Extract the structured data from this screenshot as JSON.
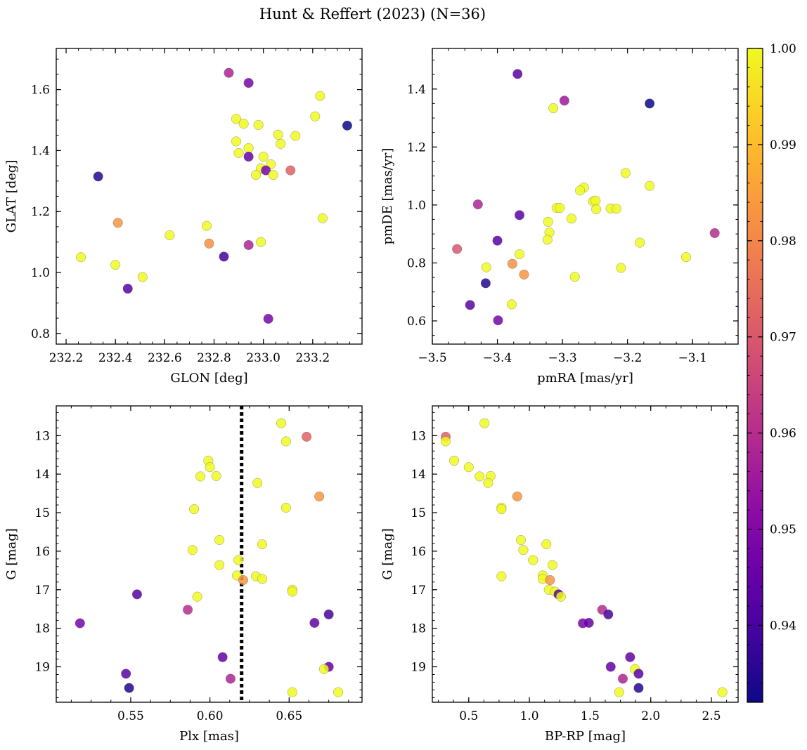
{
  "figure": {
    "title": "Hunt & Reffert (2023) (N=36)"
  },
  "colorbar": {
    "colormap": "plasma",
    "vmin": 0.932,
    "vmax": 1.0,
    "tick_values": [
      0.94,
      0.95,
      0.96,
      0.97,
      0.98,
      0.99,
      1.0
    ],
    "tick_labels": [
      "0.94",
      "0.95",
      "0.96",
      "0.97",
      "0.98",
      "0.99",
      "1.00"
    ]
  },
  "chart_data": [
    {
      "type": "scatter",
      "id": "glon-glat",
      "xlabel": "GLON [deg]",
      "ylabel": "GLAT [deg]",
      "xlim": [
        232.16,
        233.4
      ],
      "ylim": [
        0.765,
        1.735
      ],
      "xticks": [
        232.2,
        232.4,
        232.6,
        232.8,
        233.0,
        233.2
      ],
      "xtick_labels": [
        "232.2",
        "232.4",
        "232.6",
        "232.8",
        "233.0",
        "233.2"
      ],
      "yticks": [
        0.8,
        1.0,
        1.2,
        1.4,
        1.6
      ],
      "ytick_labels": [
        "0.8",
        "1.0",
        "1.2",
        "1.4",
        "1.6"
      ],
      "yinvert": false,
      "points": [
        {
          "x": 232.86,
          "y": 1.655,
          "c": 0.958
        },
        {
          "x": 232.94,
          "y": 1.622,
          "c": 0.948
        },
        {
          "x": 233.23,
          "y": 1.579,
          "c": 1.0
        },
        {
          "x": 233.21,
          "y": 1.512,
          "c": 1.0
        },
        {
          "x": 233.34,
          "y": 1.482,
          "c": 0.932
        },
        {
          "x": 232.89,
          "y": 1.504,
          "c": 1.0
        },
        {
          "x": 232.92,
          "y": 1.488,
          "c": 1.0
        },
        {
          "x": 232.98,
          "y": 1.484,
          "c": 1.0
        },
        {
          "x": 233.06,
          "y": 1.452,
          "c": 1.0
        },
        {
          "x": 233.13,
          "y": 1.448,
          "c": 1.0
        },
        {
          "x": 232.89,
          "y": 1.43,
          "c": 1.0
        },
        {
          "x": 233.07,
          "y": 1.422,
          "c": 1.0
        },
        {
          "x": 232.94,
          "y": 1.408,
          "c": 1.0
        },
        {
          "x": 232.9,
          "y": 1.392,
          "c": 1.0
        },
        {
          "x": 232.94,
          "y": 1.38,
          "c": 0.945
        },
        {
          "x": 233.0,
          "y": 1.38,
          "c": 1.0
        },
        {
          "x": 233.03,
          "y": 1.355,
          "c": 1.0
        },
        {
          "x": 232.99,
          "y": 1.342,
          "c": 1.0
        },
        {
          "x": 233.01,
          "y": 1.335,
          "c": 0.948
        },
        {
          "x": 233.11,
          "y": 1.335,
          "c": 0.972
        },
        {
          "x": 232.97,
          "y": 1.32,
          "c": 1.0
        },
        {
          "x": 233.04,
          "y": 1.32,
          "c": 1.0
        },
        {
          "x": 232.33,
          "y": 1.315,
          "c": 0.935
        },
        {
          "x": 233.24,
          "y": 1.178,
          "c": 1.0
        },
        {
          "x": 232.41,
          "y": 1.163,
          "c": 0.983
        },
        {
          "x": 232.77,
          "y": 1.153,
          "c": 1.0
        },
        {
          "x": 232.62,
          "y": 1.122,
          "c": 1.0
        },
        {
          "x": 232.99,
          "y": 1.1,
          "c": 1.0
        },
        {
          "x": 232.78,
          "y": 1.095,
          "c": 0.982
        },
        {
          "x": 232.94,
          "y": 1.09,
          "c": 0.958
        },
        {
          "x": 232.26,
          "y": 1.05,
          "c": 1.0
        },
        {
          "x": 232.84,
          "y": 1.052,
          "c": 0.94
        },
        {
          "x": 232.4,
          "y": 1.025,
          "c": 1.0
        },
        {
          "x": 232.51,
          "y": 0.985,
          "c": 1.0
        },
        {
          "x": 232.45,
          "y": 0.947,
          "c": 0.943
        },
        {
          "x": 233.02,
          "y": 0.848,
          "c": 0.948
        }
      ]
    },
    {
      "type": "scatter",
      "id": "pmra-pmde",
      "xlabel": "pmRA [mas/yr]",
      "ylabel": "pmDE [mas/yr]",
      "xlim": [
        -3.5,
        -3.03
      ],
      "ylim": [
        0.52,
        1.54
      ],
      "xticks": [
        -3.5,
        -3.4,
        -3.3,
        -3.2,
        -3.1
      ],
      "xtick_labels": [
        "−3.5",
        "−3.4",
        "−3.3",
        "−3.2",
        "−3.1"
      ],
      "yticks": [
        0.6,
        0.8,
        1.0,
        1.2,
        1.4
      ],
      "ytick_labels": [
        "0.6",
        "0.8",
        "1.0",
        "1.2",
        "1.4"
      ],
      "yinvert": false,
      "points": [
        {
          "x": -3.369,
          "y": 1.452,
          "c": 0.943
        },
        {
          "x": -3.297,
          "y": 1.36,
          "c": 0.955
        },
        {
          "x": -3.314,
          "y": 1.334,
          "c": 1.0
        },
        {
          "x": -3.166,
          "y": 1.35,
          "c": 0.932
        },
        {
          "x": -3.203,
          "y": 1.11,
          "c": 1.0
        },
        {
          "x": -3.166,
          "y": 1.066,
          "c": 1.0
        },
        {
          "x": -3.267,
          "y": 1.06,
          "c": 1.0
        },
        {
          "x": -3.273,
          "y": 1.05,
          "c": 1.0
        },
        {
          "x": -3.43,
          "y": 1.002,
          "c": 0.958
        },
        {
          "x": -3.253,
          "y": 1.012,
          "c": 1.0
        },
        {
          "x": -3.249,
          "y": 1.015,
          "c": 1.0
        },
        {
          "x": -3.309,
          "y": 0.99,
          "c": 1.0
        },
        {
          "x": -3.304,
          "y": 0.99,
          "c": 1.0
        },
        {
          "x": -3.226,
          "y": 0.988,
          "c": 1.0
        },
        {
          "x": -3.217,
          "y": 0.987,
          "c": 1.0
        },
        {
          "x": -3.248,
          "y": 0.985,
          "c": 1.0
        },
        {
          "x": -3.366,
          "y": 0.965,
          "c": 0.943
        },
        {
          "x": -3.286,
          "y": 0.953,
          "c": 1.0
        },
        {
          "x": -3.322,
          "y": 0.942,
          "c": 1.0
        },
        {
          "x": -3.32,
          "y": 0.905,
          "c": 1.0
        },
        {
          "x": -3.066,
          "y": 0.903,
          "c": 0.96
        },
        {
          "x": -3.323,
          "y": 0.88,
          "c": 1.0
        },
        {
          "x": -3.4,
          "y": 0.877,
          "c": 0.943
        },
        {
          "x": -3.181,
          "y": 0.87,
          "c": 1.0
        },
        {
          "x": -3.462,
          "y": 0.848,
          "c": 0.97
        },
        {
          "x": -3.366,
          "y": 0.83,
          "c": 1.0
        },
        {
          "x": -3.11,
          "y": 0.82,
          "c": 1.0
        },
        {
          "x": -3.377,
          "y": 0.797,
          "c": 0.982
        },
        {
          "x": -3.417,
          "y": 0.785,
          "c": 1.0
        },
        {
          "x": -3.21,
          "y": 0.783,
          "c": 1.0
        },
        {
          "x": -3.359,
          "y": 0.76,
          "c": 0.983
        },
        {
          "x": -3.281,
          "y": 0.752,
          "c": 1.0
        },
        {
          "x": -3.418,
          "y": 0.73,
          "c": 0.935
        },
        {
          "x": -3.378,
          "y": 0.657,
          "c": 1.0
        },
        {
          "x": -3.442,
          "y": 0.655,
          "c": 0.943
        },
        {
          "x": -3.399,
          "y": 0.602,
          "c": 0.948
        }
      ]
    },
    {
      "type": "scatter",
      "id": "plx-g",
      "xlabel": "Plx [mas]",
      "ylabel": "G [mag]",
      "xlim": [
        0.503,
        0.696
      ],
      "ylim": [
        12.23,
        19.92
      ],
      "xticks": [
        0.55,
        0.6,
        0.65
      ],
      "xtick_labels": [
        "0.55",
        "0.60",
        "0.65"
      ],
      "yticks": [
        13,
        14,
        15,
        16,
        17,
        18,
        19
      ],
      "ytick_labels": [
        "13",
        "14",
        "15",
        "16",
        "17",
        "18",
        "19"
      ],
      "yinvert": true,
      "vline": {
        "x": 0.62,
        "style": "dotted"
      },
      "points": [
        {
          "x": 0.645,
          "y": 12.68,
          "c": 1.0
        },
        {
          "x": 0.661,
          "y": 13.03,
          "c": 0.972
        },
        {
          "x": 0.648,
          "y": 13.15,
          "c": 1.0
        },
        {
          "x": 0.599,
          "y": 13.65,
          "c": 1.0
        },
        {
          "x": 0.6,
          "y": 13.82,
          "c": 1.0
        },
        {
          "x": 0.594,
          "y": 14.06,
          "c": 1.0
        },
        {
          "x": 0.604,
          "y": 14.05,
          "c": 1.0
        },
        {
          "x": 0.63,
          "y": 14.23,
          "c": 1.0
        },
        {
          "x": 0.669,
          "y": 14.58,
          "c": 0.983
        },
        {
          "x": 0.648,
          "y": 14.87,
          "c": 1.0
        },
        {
          "x": 0.59,
          "y": 14.91,
          "c": 1.0
        },
        {
          "x": 0.606,
          "y": 15.71,
          "c": 1.0
        },
        {
          "x": 0.633,
          "y": 15.82,
          "c": 1.0
        },
        {
          "x": 0.589,
          "y": 15.97,
          "c": 1.0
        },
        {
          "x": 0.618,
          "y": 16.23,
          "c": 1.0
        },
        {
          "x": 0.606,
          "y": 16.36,
          "c": 1.0
        },
        {
          "x": 0.617,
          "y": 16.63,
          "c": 1.0
        },
        {
          "x": 0.629,
          "y": 16.65,
          "c": 1.0
        },
        {
          "x": 0.633,
          "y": 16.72,
          "c": 1.0
        },
        {
          "x": 0.621,
          "y": 16.75,
          "c": 0.983
        },
        {
          "x": 0.652,
          "y": 17.0,
          "c": 1.0
        },
        {
          "x": 0.652,
          "y": 17.05,
          "c": 1.0
        },
        {
          "x": 0.554,
          "y": 17.12,
          "c": 0.943
        },
        {
          "x": 0.592,
          "y": 17.18,
          "c": 1.0
        },
        {
          "x": 0.586,
          "y": 17.52,
          "c": 0.96
        },
        {
          "x": 0.675,
          "y": 17.64,
          "c": 0.94
        },
        {
          "x": 0.518,
          "y": 17.87,
          "c": 0.948
        },
        {
          "x": 0.666,
          "y": 17.86,
          "c": 0.945
        },
        {
          "x": 0.608,
          "y": 18.75,
          "c": 0.945
        },
        {
          "x": 0.675,
          "y": 19.0,
          "c": 0.945
        },
        {
          "x": 0.672,
          "y": 19.06,
          "c": 1.0
        },
        {
          "x": 0.547,
          "y": 19.18,
          "c": 0.943
        },
        {
          "x": 0.613,
          "y": 19.31,
          "c": 0.958
        },
        {
          "x": 0.549,
          "y": 19.55,
          "c": 0.935
        },
        {
          "x": 0.652,
          "y": 19.66,
          "c": 1.0
        },
        {
          "x": 0.681,
          "y": 19.66,
          "c": 1.0
        }
      ]
    },
    {
      "type": "scatter",
      "id": "bprp-g",
      "xlabel": "BP-RP [mag]",
      "ylabel": "G [mag]",
      "xlim": [
        0.2,
        2.72
      ],
      "ylim": [
        12.23,
        19.92
      ],
      "xticks": [
        0.5,
        1.0,
        1.5,
        2.0,
        2.5
      ],
      "xtick_labels": [
        "0.5",
        "1.0",
        "1.5",
        "2.0",
        "2.5"
      ],
      "yticks": [
        13,
        14,
        15,
        16,
        17,
        18,
        19
      ],
      "ytick_labels": [
        "13",
        "14",
        "15",
        "16",
        "17",
        "18",
        "19"
      ],
      "yinvert": true,
      "points": [
        {
          "x": 0.63,
          "y": 12.68,
          "c": 1.0
        },
        {
          "x": 0.31,
          "y": 13.03,
          "c": 0.972
        },
        {
          "x": 0.31,
          "y": 13.15,
          "c": 1.0
        },
        {
          "x": 0.38,
          "y": 13.65,
          "c": 1.0
        },
        {
          "x": 0.5,
          "y": 13.82,
          "c": 1.0
        },
        {
          "x": 0.59,
          "y": 14.06,
          "c": 1.0
        },
        {
          "x": 0.68,
          "y": 14.05,
          "c": 1.0
        },
        {
          "x": 0.66,
          "y": 14.23,
          "c": 1.0
        },
        {
          "x": 0.9,
          "y": 14.58,
          "c": 0.983
        },
        {
          "x": 0.77,
          "y": 14.87,
          "c": 1.0
        },
        {
          "x": 0.77,
          "y": 14.91,
          "c": 1.0
        },
        {
          "x": 0.93,
          "y": 15.71,
          "c": 1.0
        },
        {
          "x": 1.14,
          "y": 15.82,
          "c": 1.0
        },
        {
          "x": 0.95,
          "y": 15.97,
          "c": 1.0
        },
        {
          "x": 1.03,
          "y": 16.23,
          "c": 1.0
        },
        {
          "x": 1.19,
          "y": 16.36,
          "c": 1.0
        },
        {
          "x": 1.11,
          "y": 16.63,
          "c": 1.0
        },
        {
          "x": 0.77,
          "y": 16.65,
          "c": 1.0
        },
        {
          "x": 1.11,
          "y": 16.72,
          "c": 1.0
        },
        {
          "x": 1.17,
          "y": 16.75,
          "c": 0.983
        },
        {
          "x": 1.16,
          "y": 17.0,
          "c": 1.0
        },
        {
          "x": 1.21,
          "y": 17.05,
          "c": 1.0
        },
        {
          "x": 1.24,
          "y": 17.12,
          "c": 0.943
        },
        {
          "x": 1.26,
          "y": 17.18,
          "c": 1.0
        },
        {
          "x": 1.6,
          "y": 17.52,
          "c": 0.96
        },
        {
          "x": 1.65,
          "y": 17.64,
          "c": 0.94
        },
        {
          "x": 1.44,
          "y": 17.87,
          "c": 0.948
        },
        {
          "x": 1.49,
          "y": 17.86,
          "c": 0.945
        },
        {
          "x": 1.83,
          "y": 18.75,
          "c": 0.945
        },
        {
          "x": 1.67,
          "y": 19.0,
          "c": 0.945
        },
        {
          "x": 1.87,
          "y": 19.06,
          "c": 1.0
        },
        {
          "x": 1.9,
          "y": 19.18,
          "c": 0.943
        },
        {
          "x": 1.77,
          "y": 19.31,
          "c": 0.958
        },
        {
          "x": 1.9,
          "y": 19.55,
          "c": 0.935
        },
        {
          "x": 1.74,
          "y": 19.66,
          "c": 1.0
        },
        {
          "x": 2.59,
          "y": 19.66,
          "c": 1.0
        }
      ]
    }
  ]
}
